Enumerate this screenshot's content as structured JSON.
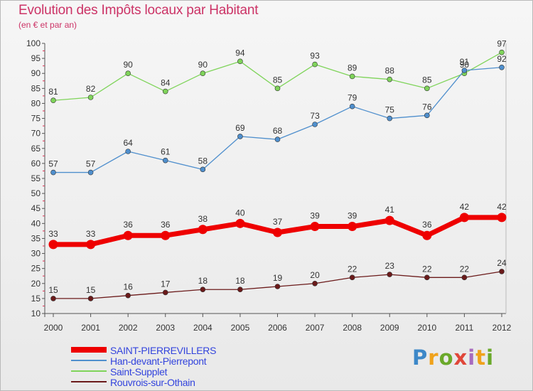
{
  "chart_data": {
    "type": "line",
    "title": "Evolution des Impôts locaux par Habitant",
    "subtitle": "(en € et par an)",
    "x": [
      "2000",
      "2001",
      "2002",
      "2003",
      "2004",
      "2005",
      "2006",
      "2007",
      "2008",
      "2009",
      "2010",
      "2011",
      "2012"
    ],
    "ylim": [
      10,
      100
    ],
    "yticks": [
      10,
      15,
      20,
      25,
      30,
      35,
      40,
      45,
      50,
      55,
      60,
      65,
      70,
      75,
      80,
      85,
      90,
      95,
      100
    ],
    "grid": false,
    "legend_position": "bottom-left",
    "series": [
      {
        "name": "SAINT-PIERREVILLERS",
        "color": "#ee0000",
        "values": [
          33,
          33,
          36,
          36,
          38,
          40,
          37,
          39,
          39,
          41,
          36,
          42,
          42
        ]
      },
      {
        "name": "Han-devant-Pierrepont",
        "color": "#4f8fcd",
        "values": [
          57,
          57,
          64,
          61,
          58,
          69,
          68,
          73,
          79,
          75,
          76,
          91,
          92
        ]
      },
      {
        "name": "Saint-Supplet",
        "color": "#7fd45a",
        "values": [
          81,
          82,
          90,
          84,
          90,
          94,
          85,
          93,
          89,
          88,
          85,
          90,
          97
        ]
      },
      {
        "name": "Rouvrois-sur-Othain",
        "color": "#6b1a1a",
        "values": [
          15,
          15,
          16,
          17,
          18,
          18,
          19,
          20,
          22,
          23,
          22,
          22,
          24
        ]
      }
    ]
  },
  "brand": {
    "letters": [
      "P",
      "r",
      "o",
      "x",
      "i",
      "t",
      "i"
    ]
  }
}
